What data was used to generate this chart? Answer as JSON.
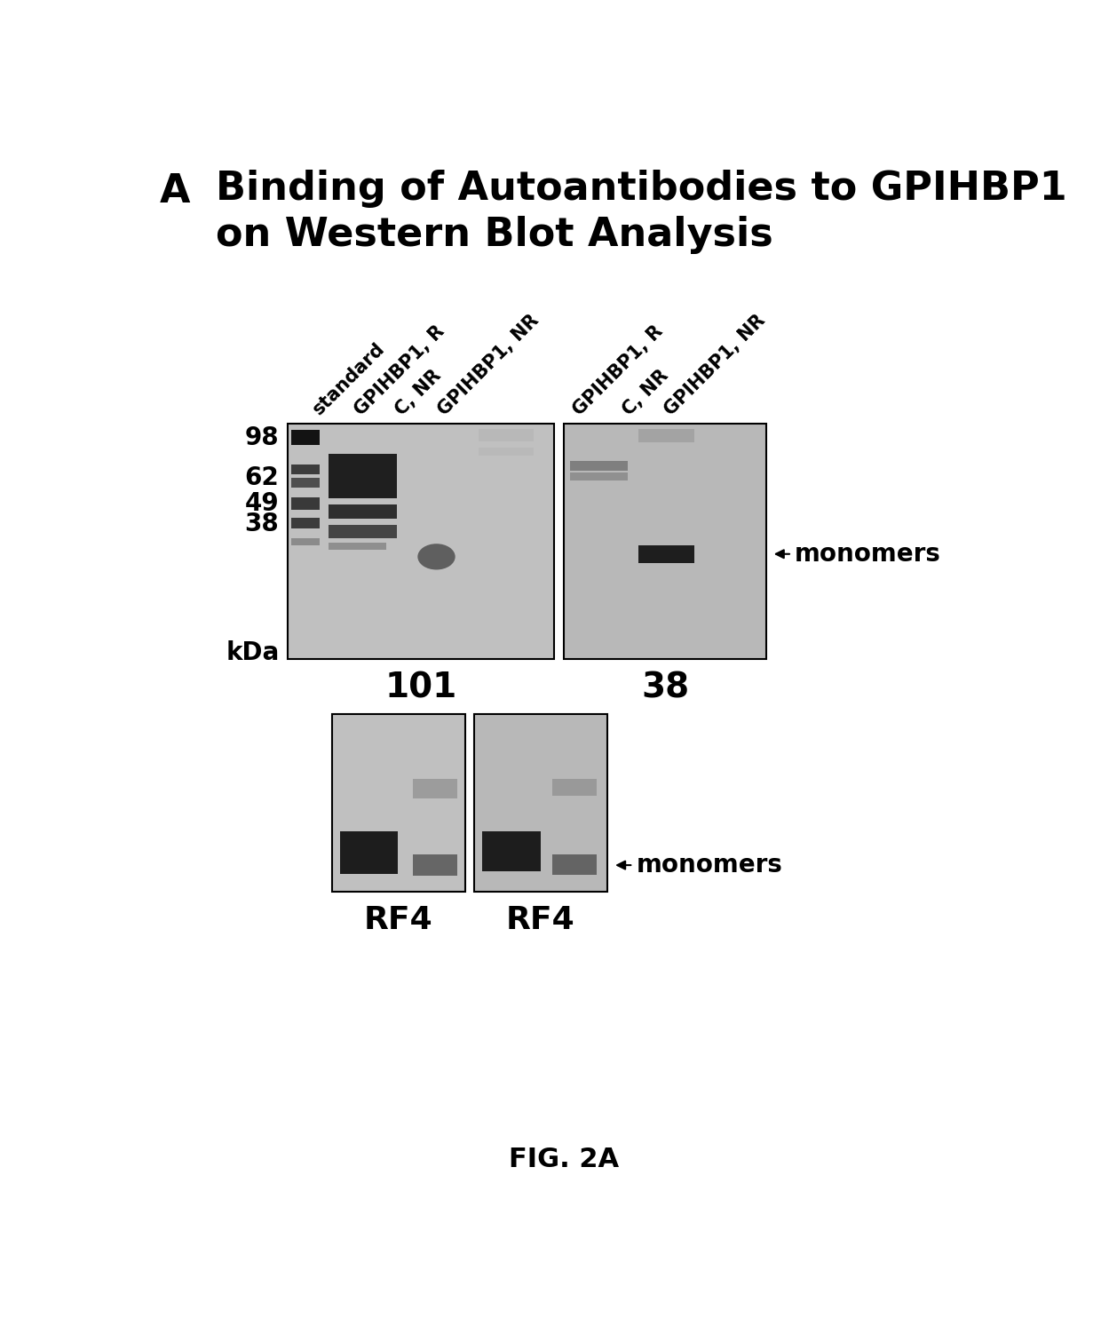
{
  "title_letter": "A",
  "title_fontsize": 32,
  "title_line1": "Binding of Autoantibodies to GPIHBP1",
  "title_line2": "on Western Blot Analysis",
  "fig_caption": "FIG. 2A",
  "panel1_label": "101",
  "panel2_label": "38",
  "panel3_label": "RF4",
  "panel4_label": "RF4",
  "monomer_label": "◄monomers",
  "kda_labels": [
    [
      "98",
      0.12
    ],
    [
      "62",
      0.3
    ],
    [
      "49",
      0.42
    ],
    [
      "38",
      0.52
    ],
    [
      "kDa",
      0.97
    ]
  ],
  "bg_color": "#ffffff",
  "blot_bg_light": "#d0d0d0",
  "blot_bg_dark": "#b8b8b8",
  "band_black": "#111111",
  "band_dark": "#333333",
  "band_med": "#666666",
  "band_light": "#999999"
}
